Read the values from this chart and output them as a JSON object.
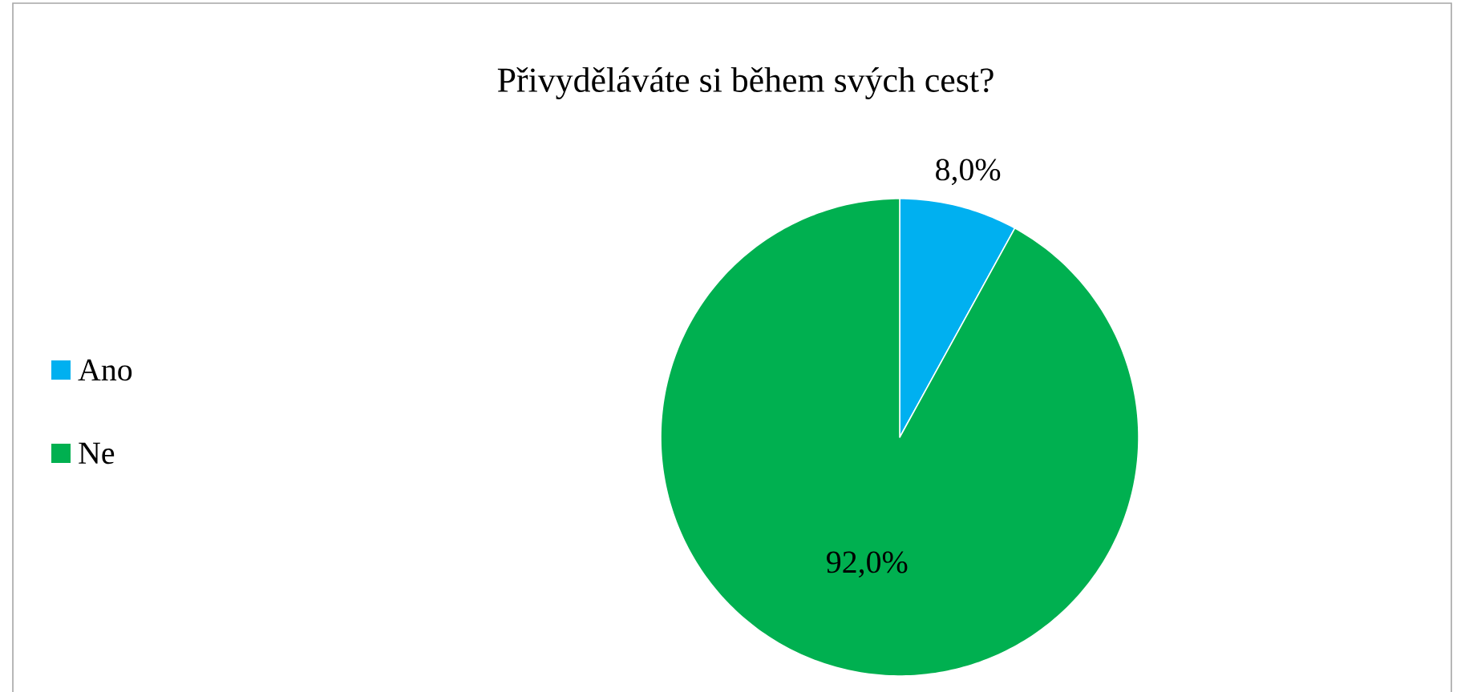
{
  "chart_data": {
    "type": "pie",
    "title": "Přivyděláváte si během svých cest?",
    "categories": [
      "Ano",
      "Ne"
    ],
    "values": [
      8.0,
      92.0
    ],
    "colors": [
      "#00b0f0",
      "#00b050"
    ],
    "value_labels": [
      "8,0%",
      "92,0%"
    ],
    "legend": "left"
  }
}
